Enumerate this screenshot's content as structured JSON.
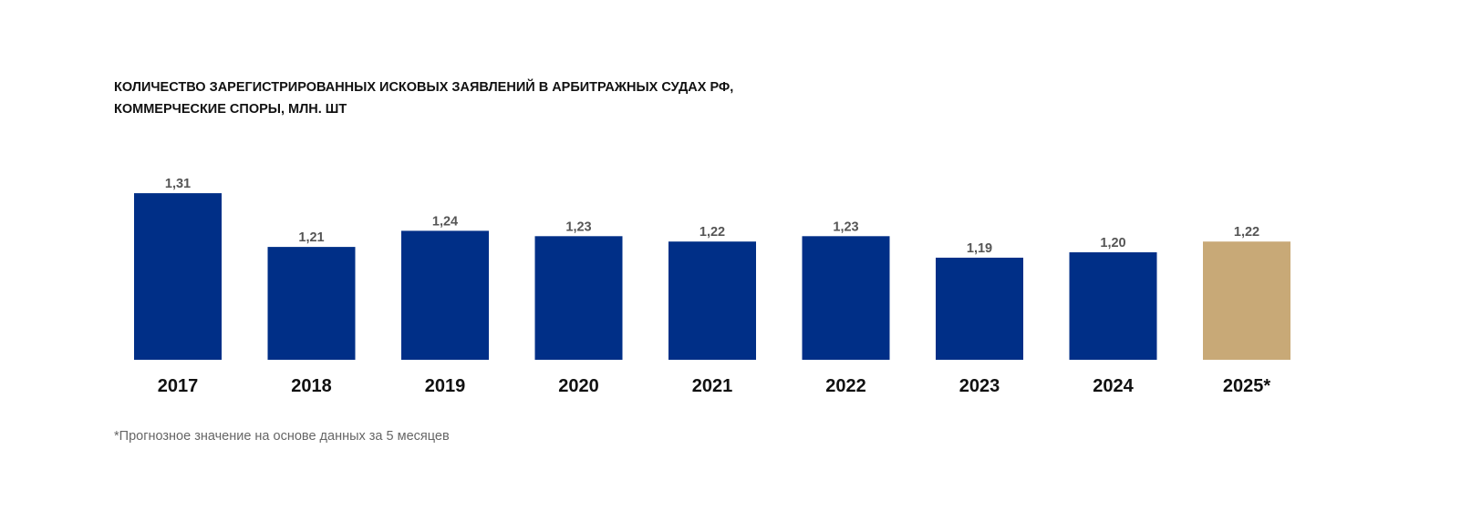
{
  "chart_data": {
    "type": "bar",
    "title_line1": "КОЛИЧЕСТВО ЗАРЕГИСТРИРОВАННЫХ ИСКОВЫХ ЗАЯВЛЕНИЙ В АРБИТРАЖНЫХ СУДАХ РФ,",
    "title_line2": "КОММЕРЧЕСКИЕ СПОРЫ, МЛН. ШТ",
    "categories": [
      "2017",
      "2018",
      "2019",
      "2020",
      "2021",
      "2022",
      "2023",
      "2024",
      "2025*"
    ],
    "values": [
      1.31,
      1.21,
      1.24,
      1.23,
      1.22,
      1.23,
      1.19,
      1.2,
      1.22
    ],
    "value_labels": [
      "1,31",
      "1,21",
      "1,24",
      "1,23",
      "1,22",
      "1,23",
      "1,19",
      "1,20",
      "1,22"
    ],
    "forecast": [
      false,
      false,
      false,
      false,
      false,
      false,
      false,
      false,
      true
    ],
    "xlabel": "",
    "ylabel": "",
    "ylim": [
      1.0,
      1.31
    ],
    "grid": false,
    "colors": {
      "actual": "#002F87",
      "forecast": "#C8A977",
      "label": "#555555"
    },
    "footnote": "*Прогнозное значение на основе данных за 5 месяцев"
  }
}
